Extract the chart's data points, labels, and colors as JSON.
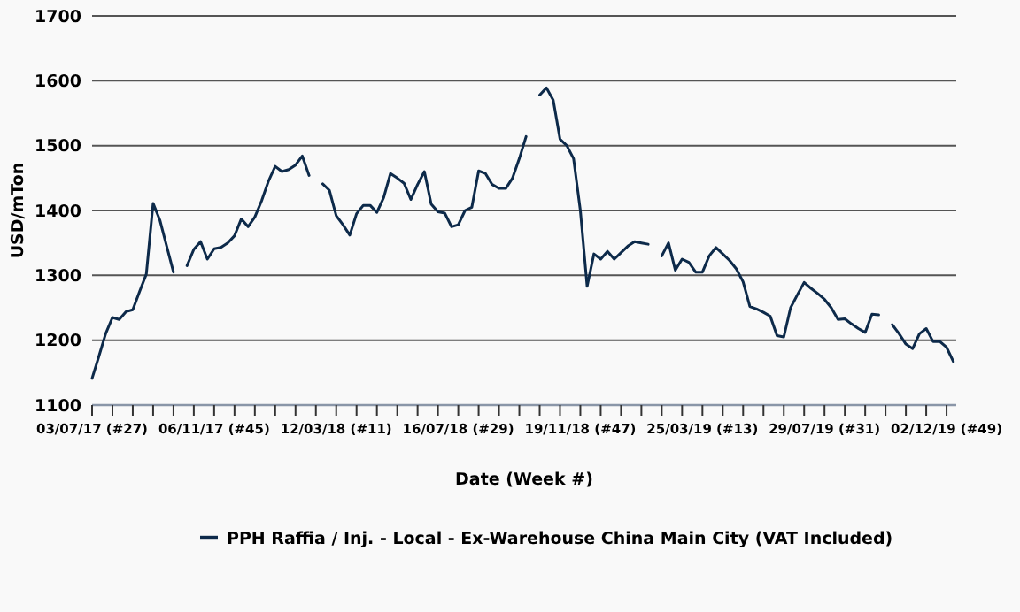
{
  "chart_data": {
    "type": "line",
    "xlabel": "Date (Week #)",
    "ylabel": "USD/mTon",
    "legend": "bottom",
    "grid": "y",
    "marker": "none",
    "line_style": "solid",
    "xlim": [
      "2017-07-03",
      "2019-12-12"
    ],
    "xticks": [
      {
        "value": "2017-07-03",
        "label": "03/07/17 (#27)"
      },
      {
        "value": "2017-07-24",
        "label": null
      },
      {
        "value": "2017-08-14",
        "label": null
      },
      {
        "value": "2017-09-04",
        "label": null
      },
      {
        "value": "2017-09-25",
        "label": null
      },
      {
        "value": "2017-10-16",
        "label": null
      },
      {
        "value": "2017-11-06",
        "label": "06/11/17 (#45)"
      },
      {
        "value": "2017-11-27",
        "label": null
      },
      {
        "value": "2017-12-18",
        "label": null
      },
      {
        "value": "2018-01-08",
        "label": null
      },
      {
        "value": "2018-01-29",
        "label": null
      },
      {
        "value": "2018-02-19",
        "label": null
      },
      {
        "value": "2018-03-12",
        "label": "12/03/18 (#11)"
      },
      {
        "value": "2018-04-02",
        "label": null
      },
      {
        "value": "2018-04-23",
        "label": null
      },
      {
        "value": "2018-05-14",
        "label": null
      },
      {
        "value": "2018-06-04",
        "label": null
      },
      {
        "value": "2018-06-25",
        "label": null
      },
      {
        "value": "2018-07-16",
        "label": "16/07/18 (#29)"
      },
      {
        "value": "2018-08-06",
        "label": null
      },
      {
        "value": "2018-08-27",
        "label": null
      },
      {
        "value": "2018-09-17",
        "label": null
      },
      {
        "value": "2018-10-08",
        "label": null
      },
      {
        "value": "2018-10-29",
        "label": null
      },
      {
        "value": "2018-11-19",
        "label": "19/11/18 (#47)"
      },
      {
        "value": "2018-12-10",
        "label": null
      },
      {
        "value": "2018-12-31",
        "label": null
      },
      {
        "value": "2019-01-21",
        "label": null
      },
      {
        "value": "2019-02-11",
        "label": null
      },
      {
        "value": "2019-03-04",
        "label": null
      },
      {
        "value": "2019-03-25",
        "label": "25/03/19 (#13)"
      },
      {
        "value": "2019-04-15",
        "label": null
      },
      {
        "value": "2019-05-06",
        "label": null
      },
      {
        "value": "2019-05-27",
        "label": null
      },
      {
        "value": "2019-06-17",
        "label": null
      },
      {
        "value": "2019-07-08",
        "label": null
      },
      {
        "value": "2019-07-29",
        "label": "29/07/19 (#31)"
      },
      {
        "value": "2019-08-19",
        "label": null
      },
      {
        "value": "2019-09-09",
        "label": null
      },
      {
        "value": "2019-09-30",
        "label": null
      },
      {
        "value": "2019-10-21",
        "label": null
      },
      {
        "value": "2019-11-11",
        "label": null
      },
      {
        "value": "2019-12-02",
        "label": "02/12/19 (#49)"
      }
    ],
    "ylim": [
      1100,
      1700
    ],
    "yticks": [
      1100,
      1200,
      1300,
      1400,
      1500,
      1600,
      1700
    ],
    "series": [
      {
        "name": "PPH Raffia / Inj. - Local - Ex-Warehouse China Main City (VAT Included)",
        "color": "#0d2a4a",
        "x": [
          "2017-07-03",
          "2017-07-10",
          "2017-07-17",
          "2017-07-24",
          "2017-07-31",
          "2017-08-07",
          "2017-08-14",
          "2017-08-21",
          "2017-08-28",
          "2017-09-04",
          "2017-09-11",
          "2017-09-18",
          "2017-09-25",
          "2017-10-02",
          "2017-10-09",
          "2017-10-16",
          "2017-10-23",
          "2017-10-30",
          "2017-11-06",
          "2017-11-13",
          "2017-11-20",
          "2017-11-27",
          "2017-12-04",
          "2017-12-11",
          "2017-12-18",
          "2017-12-25",
          "2018-01-01",
          "2018-01-08",
          "2018-01-15",
          "2018-01-22",
          "2018-01-29",
          "2018-02-05",
          "2018-02-12",
          "2018-02-19",
          "2018-02-26",
          "2018-03-05",
          "2018-03-12",
          "2018-03-19",
          "2018-03-26",
          "2018-04-02",
          "2018-04-09",
          "2018-04-16",
          "2018-04-23",
          "2018-04-30",
          "2018-05-07",
          "2018-05-14",
          "2018-05-21",
          "2018-05-28",
          "2018-06-04",
          "2018-06-11",
          "2018-06-18",
          "2018-06-25",
          "2018-07-02",
          "2018-07-09",
          "2018-07-16",
          "2018-07-23",
          "2018-07-30",
          "2018-08-06",
          "2018-08-13",
          "2018-08-20",
          "2018-08-27",
          "2018-09-03",
          "2018-09-10",
          "2018-09-17",
          "2018-09-24",
          "2018-10-01",
          "2018-10-08",
          "2018-10-15",
          "2018-10-22",
          "2018-10-29",
          "2018-11-05",
          "2018-11-12",
          "2018-11-19",
          "2018-11-26",
          "2018-12-03",
          "2018-12-10",
          "2018-12-17",
          "2018-12-24",
          "2018-12-31",
          "2019-01-07",
          "2019-01-14",
          "2019-01-21",
          "2019-01-28",
          "2019-02-04",
          "2019-02-11",
          "2019-02-18",
          "2019-02-25",
          "2019-03-04",
          "2019-03-11",
          "2019-03-18",
          "2019-03-25",
          "2019-04-01",
          "2019-04-08",
          "2019-04-15",
          "2019-04-22",
          "2019-04-29",
          "2019-05-06",
          "2019-05-13",
          "2019-05-20",
          "2019-05-27",
          "2019-06-03",
          "2019-06-10",
          "2019-06-17",
          "2019-06-24",
          "2019-07-01",
          "2019-07-08",
          "2019-07-15",
          "2019-07-22",
          "2019-07-29",
          "2019-08-05",
          "2019-08-12",
          "2019-08-19",
          "2019-08-26",
          "2019-09-02",
          "2019-09-09",
          "2019-09-16",
          "2019-09-23",
          "2019-09-30",
          "2019-10-07",
          "2019-10-14",
          "2019-10-21",
          "2019-10-28",
          "2019-11-04",
          "2019-11-11",
          "2019-11-18",
          "2019-11-25",
          "2019-12-02",
          "2019-12-09"
        ],
        "values": [
          1141,
          1175,
          1210,
          1235,
          1232,
          1244,
          1247,
          1275,
          1302,
          1411,
          1385,
          1345,
          1305,
          null,
          1315,
          1340,
          1352,
          1325,
          1341,
          1343,
          1350,
          1361,
          1387,
          1375,
          1390,
          1415,
          1445,
          1468,
          1460,
          1463,
          1470,
          1484,
          1454,
          null,
          1441,
          1431,
          1392,
          1378,
          1362,
          1395,
          1408,
          1408,
          1397,
          1420,
          1457,
          1450,
          1442,
          1417,
          1440,
          1460,
          1410,
          1398,
          1396,
          1375,
          1378,
          1400,
          1405,
          1461,
          1457,
          1440,
          1434,
          1434,
          1450,
          1480,
          1514,
          null,
          1578,
          1589,
          1570,
          1510,
          1500,
          1480,
          1400,
          1283,
          1333,
          1325,
          1337,
          1325,
          1335,
          1345,
          1352,
          1350,
          1348,
          null,
          1330,
          1350,
          1308,
          1325,
          1320,
          1305,
          1305,
          1330,
          1343,
          1333,
          1323,
          1310,
          1290,
          1252,
          1248,
          1243,
          1237,
          1207,
          1205,
          1250,
          1270,
          1289,
          1280,
          1272,
          1263,
          1250,
          1232,
          1233,
          1225,
          1218,
          1212,
          1240,
          1239,
          null,
          1224,
          1210,
          1194,
          1187,
          1210,
          1218,
          1198,
          1198,
          1189,
          1167
        ]
      }
    ]
  }
}
